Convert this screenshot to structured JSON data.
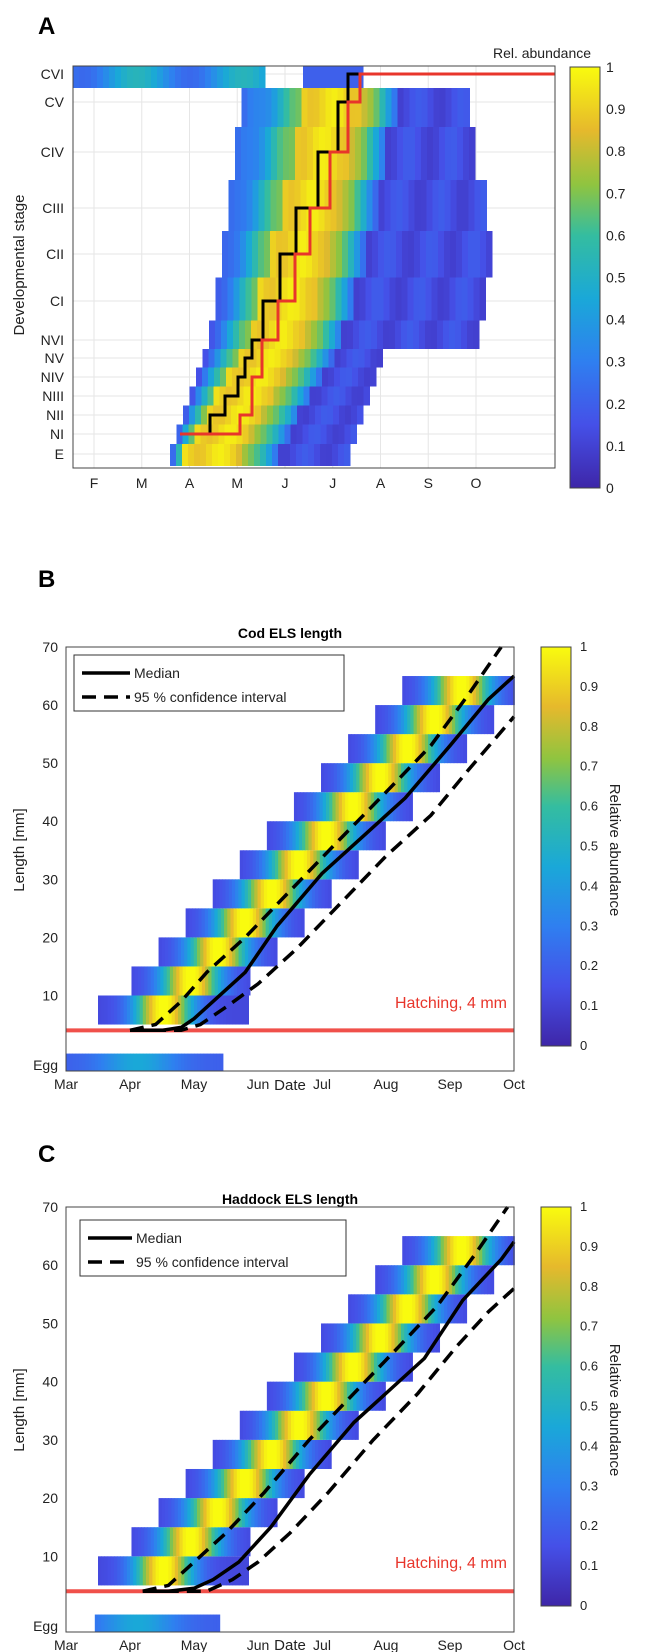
{
  "chart_data": [
    {
      "panel": "A",
      "type": "heatmap",
      "ylabel": "Developmental stage",
      "colorbar_label": "Rel. abundance",
      "x_ticks": [
        "F",
        "M",
        "A",
        "M",
        "J",
        "J",
        "A",
        "S",
        "O"
      ],
      "stages": [
        "E",
        "NI",
        "NII",
        "NIII",
        "NIV",
        "NV",
        "NVI",
        "CI",
        "CII",
        "CIII",
        "CIV",
        "CV",
        "CVI"
      ],
      "colorbar_ticks": [
        "0",
        "0.1",
        "0.2",
        "0.3",
        "0.4",
        "0.5",
        "0.6",
        "0.7",
        "0.8",
        "0.9",
        "1"
      ],
      "clim": [
        0,
        1
      ],
      "colors": {
        "black_line": "#000000",
        "red_line": "#e8352b"
      }
    },
    {
      "panel": "B",
      "type": "heatmap",
      "title": "Cod ELS length",
      "xlabel": "Date",
      "ylabel": "Length [mm]",
      "colorbar_label": "Relative abundance",
      "x_ticks": [
        "Mar",
        "Apr",
        "May",
        "Jun",
        "Jul",
        "Aug",
        "Sep",
        "Oct"
      ],
      "y_ticks": [
        "Egg",
        "10",
        "20",
        "30",
        "40",
        "50",
        "60",
        "70"
      ],
      "colorbar_ticks": [
        "0",
        "0.1",
        "0.2",
        "0.3",
        "0.4",
        "0.5",
        "0.6",
        "0.7",
        "0.8",
        "0.9",
        "1"
      ],
      "ylim": [
        -3,
        70
      ],
      "hatching_label": "Hatching, 4 mm",
      "hatching_mm": 4,
      "legend": [
        "Median",
        "95 % confidence interval"
      ],
      "median_x": [
        1.0,
        1.5,
        1.8,
        2.0,
        2.3,
        2.8,
        3.3,
        4.0,
        4.7,
        5.3,
        6.0,
        6.6,
        7.0
      ],
      "median_y": [
        4,
        4,
        4.5,
        6,
        9,
        14,
        22,
        31,
        38,
        44,
        53,
        61,
        65
      ],
      "ci_low_x": [
        1.0,
        1.8,
        2.1,
        2.5,
        3.0,
        3.6,
        4.3,
        5.0,
        5.7,
        6.3,
        7.0
      ],
      "ci_low_y": [
        4,
        4,
        5,
        8,
        12,
        18,
        26,
        34,
        41,
        49,
        58
      ],
      "ci_high_x": [
        1.0,
        1.4,
        1.8,
        2.2,
        2.8,
        3.5,
        4.2,
        5.0,
        5.7,
        6.3,
        6.8
      ],
      "ci_high_y": [
        4,
        5,
        9,
        14,
        20,
        28,
        36,
        45,
        53,
        62,
        70
      ]
    },
    {
      "panel": "C",
      "type": "heatmap",
      "title": "Haddock ELS length",
      "xlabel": "Date",
      "ylabel": "Length [mm]",
      "colorbar_label": "Relative abundance",
      "x_ticks": [
        "Mar",
        "Apr",
        "May",
        "Jun",
        "Jul",
        "Aug",
        "Sep",
        "Oct"
      ],
      "y_ticks": [
        "Egg",
        "10",
        "20",
        "30",
        "40",
        "50",
        "60",
        "70"
      ],
      "colorbar_ticks": [
        "0",
        "0.1",
        "0.2",
        "0.3",
        "0.4",
        "0.5",
        "0.6",
        "0.7",
        "0.8",
        "0.9",
        "1"
      ],
      "ylim": [
        -3,
        70
      ],
      "hatching_label": "Hatching, 4 mm",
      "hatching_mm": 4,
      "legend": [
        "Median",
        "95 % confidence interval"
      ],
      "median_x": [
        1.2,
        1.6,
        2.0,
        2.3,
        2.7,
        3.2,
        3.8,
        4.5,
        5.1,
        5.6,
        6.2,
        6.8,
        7.0
      ],
      "median_y": [
        4,
        4,
        4.5,
        6,
        9,
        15,
        24,
        33,
        39,
        44,
        54,
        61,
        64
      ],
      "ci_low_x": [
        1.2,
        2.2,
        2.6,
        3.0,
        3.5,
        4.1,
        4.8,
        5.5,
        6.1,
        6.6,
        7.0
      ],
      "ci_low_y": [
        4,
        4,
        6,
        9,
        14,
        21,
        30,
        38,
        46,
        52,
        56
      ],
      "ci_high_x": [
        1.2,
        1.6,
        2.0,
        2.5,
        3.1,
        3.8,
        4.5,
        5.2,
        5.8,
        6.4,
        6.9
      ],
      "ci_high_y": [
        4,
        5,
        9,
        14,
        21,
        30,
        38,
        46,
        53,
        62,
        70
      ]
    }
  ]
}
